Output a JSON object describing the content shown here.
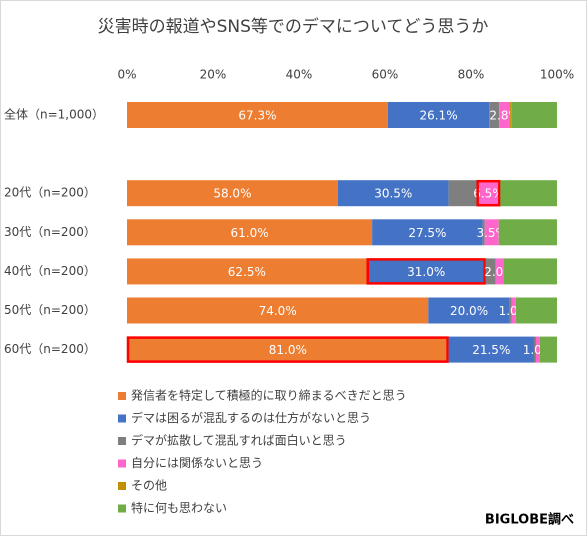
{
  "chart_data": {
    "type": "stacked_percent_bar",
    "title": "災害時の報道やSNS等でのデマについてどう思うか",
    "source": "BIGLOBE調べ",
    "categories": [
      "全体（n=1,000）",
      null,
      "20代（n=200）",
      "30代（n=200）",
      "40代（n=200）",
      "50代（n=200）",
      "60代（n=200）"
    ],
    "xlim": [
      0,
      100
    ],
    "xticks": [
      {
        "value": 0,
        "label": "0%"
      },
      {
        "value": 20,
        "label": "20%"
      },
      {
        "value": 40,
        "label": "40%"
      },
      {
        "value": 60,
        "label": "60%"
      },
      {
        "value": 80,
        "label": "80%"
      },
      {
        "value": 100,
        "label": "100%"
      }
    ],
    "series": [
      {
        "name": "発信者を特定して積極的に取り締まるべきだと思う",
        "color": "#ED7D31",
        "values": [
          67.3,
          null,
          58.0,
          61.0,
          62.5,
          74.0,
          81.0
        ],
        "value_labels": [
          "67.3%",
          null,
          "58.0%",
          "61.0%",
          "62.5%",
          "74.0%",
          "81.0%"
        ]
      },
      {
        "name": "デマは困るが混乱するのは仕方がないと思う",
        "color": "#4472C4",
        "values": [
          26.1,
          null,
          30.5,
          27.5,
          31.0,
          20.0,
          21.5
        ],
        "value_labels": [
          "26.1%",
          null,
          "30.5%",
          "27.5%",
          "31.0%",
          "20.0%",
          "21.5%"
        ]
      },
      {
        "name": "デマが拡散して混乱すれば面白いと思う",
        "color": "#7F7F7F",
        "values": [
          2.6,
          null,
          7.7,
          0.5,
          2.6,
          0.5,
          0.5
        ]
      },
      {
        "name": "自分には関係ないと思う",
        "color": "#FF66CC",
        "values": [
          2.8,
          null,
          6.5,
          3.5,
          2.0,
          1.0,
          1.0
        ],
        "value_labels": [
          "2.8%",
          null,
          "6.5%",
          "3.5%",
          "2.0%",
          "1.0%",
          "1.0%"
        ]
      },
      {
        "name": "その他",
        "color": "#BF9000",
        "values": [
          0.3,
          null,
          0,
          0,
          0,
          0,
          0
        ]
      },
      {
        "name": "特に何も思わない",
        "color": "#70AD47",
        "values": [
          11.8,
          null,
          15.6,
          14.5,
          14.0,
          10.1,
          4.3
        ]
      }
    ],
    "highlights": [
      [
        3,
        2
      ],
      [
        1,
        4
      ],
      [
        0,
        6
      ]
    ],
    "highlight_color": "#FF0000"
  }
}
